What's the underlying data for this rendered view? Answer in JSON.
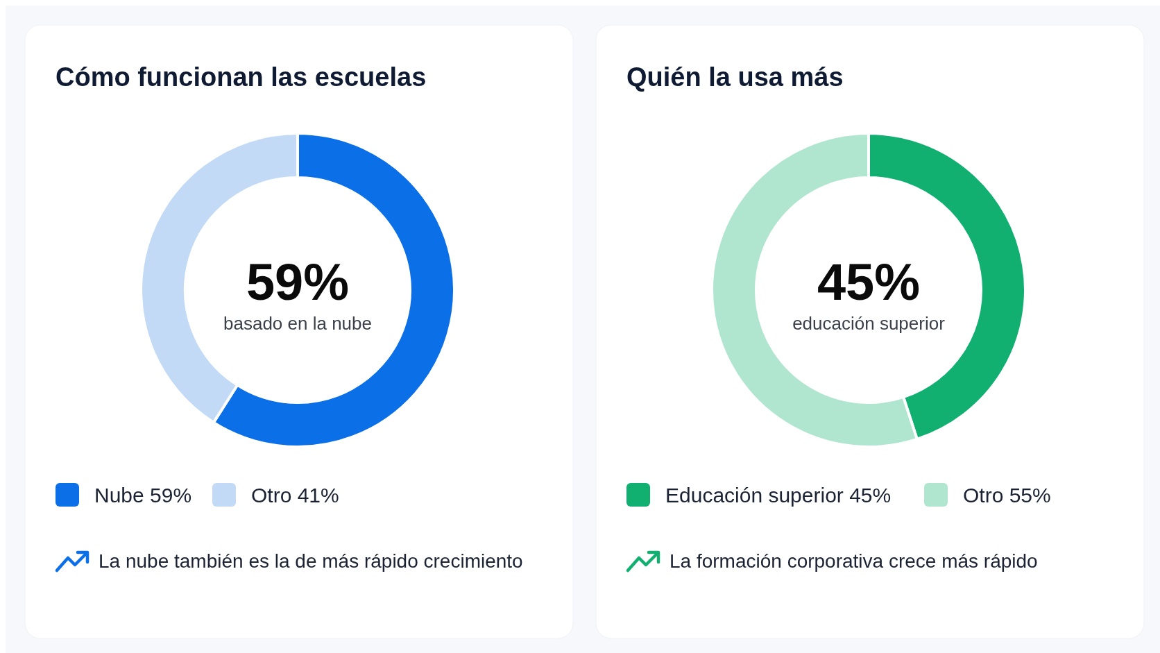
{
  "chart_data": [
    {
      "type": "donut",
      "title": "Cómo funcionan las escuelas",
      "categories": [
        "Nube",
        "Otro"
      ],
      "values": [
        59,
        41
      ],
      "colors": [
        "#0b6fe8",
        "#c2daf5"
      ],
      "value_labels": [
        "59%",
        "41%"
      ],
      "legend": "bottom",
      "annotations": [
        "59%",
        "basado en la nube",
        "La nube también es la de más rápido crecimiento"
      ]
    },
    {
      "type": "donut",
      "title": "Quién la usa más",
      "categories": [
        "Educación superior",
        "Otro"
      ],
      "values": [
        45,
        55
      ],
      "colors": [
        "#12b070",
        "#b0e6cf"
      ],
      "value_labels": [
        "45%",
        "55%"
      ],
      "legend": "bottom",
      "annotations": [
        "45%",
        "educación superior",
        "La formación corporativa crece más rápido"
      ]
    }
  ]
}
